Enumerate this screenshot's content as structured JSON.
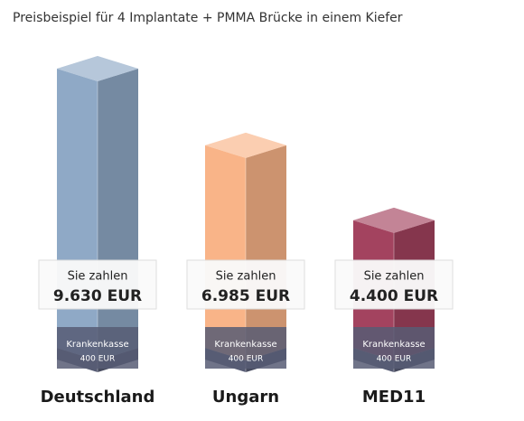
{
  "chart_data": {
    "type": "bar3d",
    "title": "Preisbeispiel für 4 Implantate + PMMA Brücke in einem Kiefer",
    "categories": [
      "Deutschland",
      "Ungarn",
      "MED11"
    ],
    "series": [
      {
        "name": "Krankenkasse",
        "color": "#575c74",
        "values": [
          400,
          400,
          400
        ],
        "value_labels": [
          "400 EUR",
          "400 EUR",
          "400 EUR"
        ]
      },
      {
        "name": "Sie zahlen",
        "colors": [
          "#8fa9c6",
          "#f9b488",
          "#a3435f"
        ],
        "values": [
          9630,
          6985,
          4400
        ],
        "value_labels": [
          "9.630 EUR",
          "6.985 EUR",
          "4.400 EUR"
        ]
      }
    ]
  }
}
